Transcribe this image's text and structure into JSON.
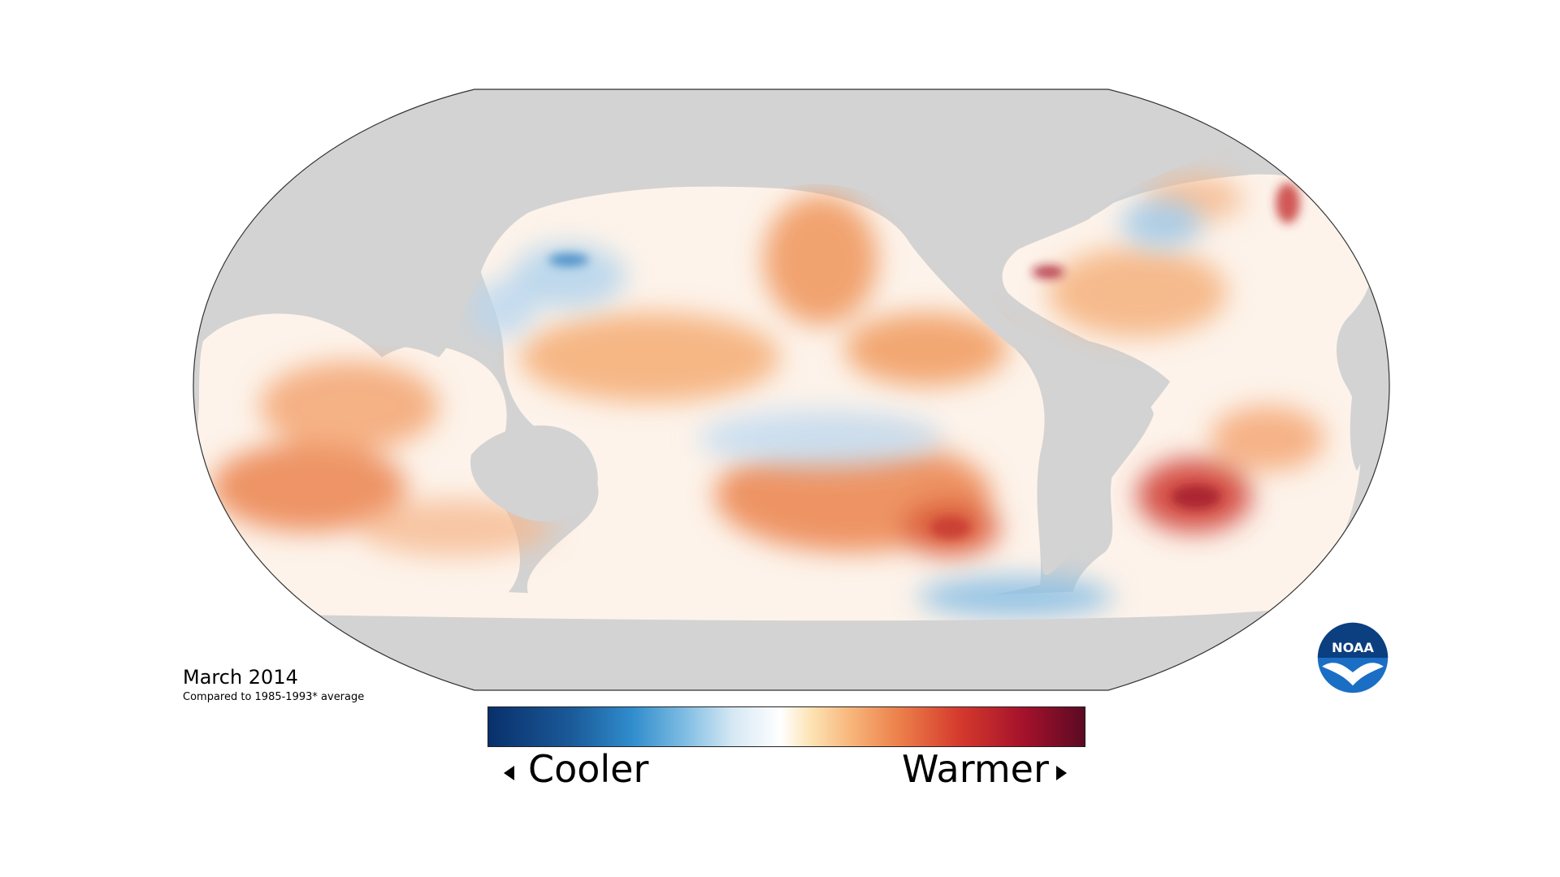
{
  "title": "March 2014",
  "subtitle": "Compared to 1985-1993* average",
  "legend": {
    "left_label": "Cooler",
    "right_label": "Warmer",
    "colors": [
      "#08306b",
      "#2f8ccc",
      "#d6e8f4",
      "#ffffff",
      "#f7b479",
      "#d53a2d",
      "#5c0a24"
    ]
  },
  "logo": {
    "text": "NOAA",
    "icon": "noaa-logo"
  },
  "map": {
    "land_color": "#d3d3d3",
    "ocean_baseline_color": "#ffffff",
    "projection": "Robinson"
  }
}
